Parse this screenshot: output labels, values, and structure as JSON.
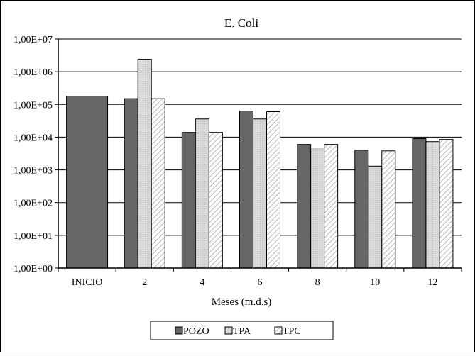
{
  "chart_data": {
    "type": "bar",
    "title": "E. Coli",
    "xlabel": "Meses (m.d.s)",
    "ylabel": "",
    "scale": "log10",
    "ylim": [
      1,
      10000000
    ],
    "yticks": [
      "1,00E+00",
      "1,00E+01",
      "1,00E+02",
      "1,00E+03",
      "1,00E+04",
      "1,00E+05",
      "1,00E+06",
      "1,00E+07"
    ],
    "categories": [
      "INICIO",
      "2",
      "4",
      "6",
      "8",
      "10",
      "12"
    ],
    "series": [
      {
        "name": "POZO",
        "values": [
          180000,
          150000,
          14000,
          63000,
          6000,
          4000,
          9000
        ]
      },
      {
        "name": "TPA",
        "values": [
          null,
          2400000,
          36000,
          36000,
          4700,
          1300,
          7300
        ]
      },
      {
        "name": "TPC",
        "values": [
          null,
          150000,
          14000,
          60000,
          6000,
          3800,
          8500
        ]
      }
    ],
    "legend_position": "bottom",
    "grid": true,
    "colors": {
      "POZO": "#666666",
      "TPA": "#d6d6d6",
      "TPC": "#ffffff",
      "grid": "#000000"
    }
  }
}
